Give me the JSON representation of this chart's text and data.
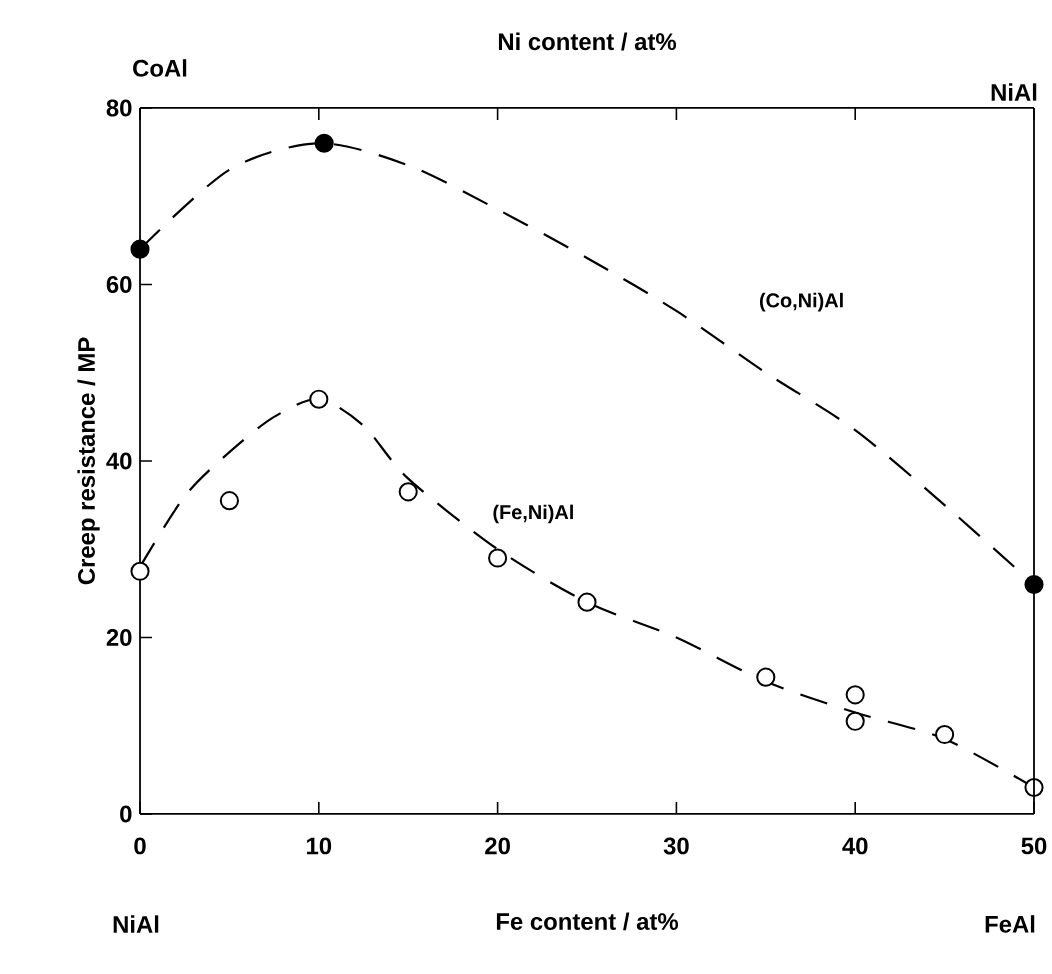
{
  "chart_data": {
    "type": "scatter",
    "xlabel": "Fe  content / at%",
    "ylabel": "Creep resistance / MP",
    "x2label": "Ni content / at%",
    "xlim": [
      0,
      50
    ],
    "xticks": [
      0,
      10,
      20,
      30,
      40,
      50
    ],
    "ylim": [
      0,
      80
    ],
    "yticks": [
      0,
      20,
      40,
      60,
      80
    ],
    "tick_labels": "xy",
    "grid": false,
    "annotations": [
      "CoAl",
      "NiAl",
      "NiAl",
      "FeAl"
    ],
    "series": [
      {
        "marker": "circle",
        "color": "#000000",
        "x": [
          0,
          10.3,
          50
        ],
        "values": [
          64,
          76,
          26
        ]
      },
      {
        "marker": "circle",
        "color": "#ffffff",
        "x": [
          0,
          5,
          10,
          15,
          20,
          25,
          35,
          40,
          40,
          45,
          50
        ],
        "values": [
          27.5,
          35.5,
          47,
          36.5,
          29,
          24,
          15.5,
          13.5,
          10.5,
          9,
          3
        ]
      },
      {
        "name": "(Co,Ni)Al",
        "type": "line",
        "line_style": "dashed",
        "marker": "none",
        "color": "#000000",
        "x": [
          0,
          5,
          10,
          15,
          20,
          25,
          30,
          35,
          40,
          45,
          50
        ],
        "values": [
          64,
          73,
          76,
          73.5,
          68.5,
          63,
          57,
          50,
          43.5,
          35,
          26
        ]
      },
      {
        "name": "(Fe,Ni)Al",
        "type": "line",
        "line_style": "dashed",
        "marker": "none",
        "color": "#000000",
        "x": [
          0,
          2.5,
          5,
          7.5,
          10,
          12.5,
          15,
          20,
          25,
          30,
          35,
          40,
          45,
          50
        ],
        "values": [
          28,
          36,
          41,
          45,
          47,
          44,
          38,
          30,
          24,
          20,
          15,
          11.5,
          8.5,
          3
        ]
      }
    ]
  }
}
